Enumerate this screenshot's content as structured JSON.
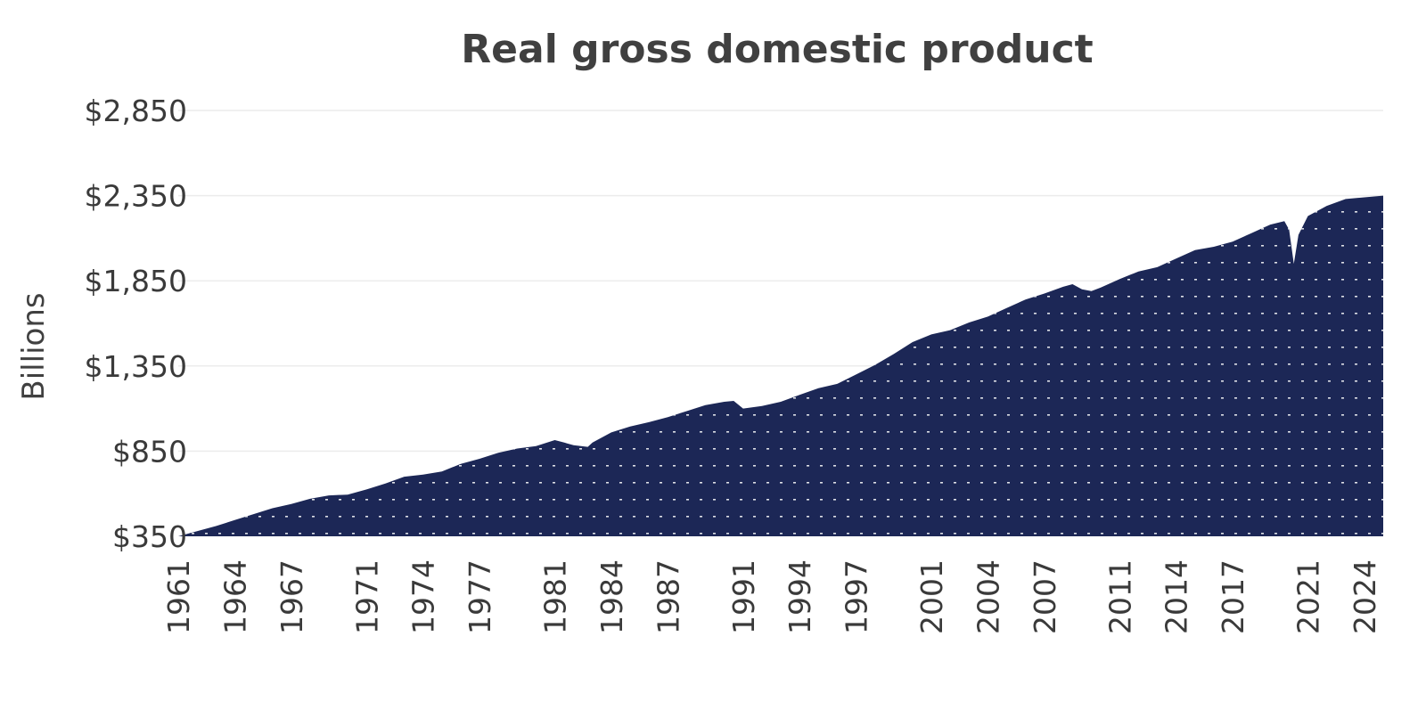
{
  "chart_data": {
    "type": "area",
    "title": "Real gross domestic product",
    "xlabel": "",
    "ylabel": "Billions",
    "x_range": [
      1961,
      2025
    ],
    "ylim": [
      350,
      2850
    ],
    "y_ticks": [
      {
        "value": 350,
        "label": "$350"
      },
      {
        "value": 850,
        "label": "$850"
      },
      {
        "value": 1350,
        "label": "$1,350"
      },
      {
        "value": 1850,
        "label": "$1,850"
      },
      {
        "value": 2350,
        "label": "$2,350"
      },
      {
        "value": 2850,
        "label": "$2,850"
      }
    ],
    "x_ticks": [
      {
        "value": 1961,
        "label": "1961"
      },
      {
        "value": 1964,
        "label": "1964"
      },
      {
        "value": 1967,
        "label": "1967"
      },
      {
        "value": 1971,
        "label": "1971"
      },
      {
        "value": 1974,
        "label": "1974"
      },
      {
        "value": 1977,
        "label": "1977"
      },
      {
        "value": 1981,
        "label": "1981"
      },
      {
        "value": 1984,
        "label": "1984"
      },
      {
        "value": 1987,
        "label": "1987"
      },
      {
        "value": 1991,
        "label": "1991"
      },
      {
        "value": 1994,
        "label": "1994"
      },
      {
        "value": 1997,
        "label": "1997"
      },
      {
        "value": 2001,
        "label": "2001"
      },
      {
        "value": 2004,
        "label": "2004"
      },
      {
        "value": 2007,
        "label": "2007"
      },
      {
        "value": 2011,
        "label": "2011"
      },
      {
        "value": 2014,
        "label": "2014"
      },
      {
        "value": 2017,
        "label": "2017"
      },
      {
        "value": 2021,
        "label": "2021"
      },
      {
        "value": 2024,
        "label": "2024"
      }
    ],
    "grid": true,
    "fill_color": "#1c2756",
    "pattern_dot_color": "#ffffff",
    "series": [
      {
        "x": [
          1961,
          1962,
          1963,
          1964,
          1965,
          1966,
          1967,
          1968,
          1969,
          1970,
          1971,
          1972,
          1973,
          1974,
          1975,
          1976,
          1977,
          1978,
          1979,
          1980,
          1981,
          1981.5,
          1982,
          1982.75,
          1983,
          1984,
          1985,
          1986,
          1987,
          1988,
          1989,
          1990,
          1990.5,
          1991,
          1992,
          1993,
          1994,
          1995,
          1996,
          1997,
          1998,
          1999,
          2000,
          2001,
          2002,
          2003,
          2004,
          2005,
          2006,
          2007,
          2008,
          2008.5,
          2009,
          2009.5,
          2010,
          2011,
          2012,
          2013,
          2014,
          2015,
          2016,
          2017,
          2018,
          2019,
          2019.75,
          2020,
          2020.25,
          2020.5,
          2021,
          2022,
          2023,
          2024,
          2025
        ],
        "y": [
          350,
          380,
          410,
          445,
          480,
          515,
          540,
          570,
          590,
          595,
          625,
          660,
          700,
          712,
          730,
          775,
          805,
          840,
          865,
          880,
          915,
          900,
          885,
          875,
          900,
          960,
          995,
          1020,
          1050,
          1085,
          1120,
          1140,
          1145,
          1100,
          1115,
          1140,
          1180,
          1220,
          1245,
          1300,
          1355,
          1420,
          1490,
          1535,
          1560,
          1605,
          1640,
          1690,
          1740,
          1775,
          1815,
          1830,
          1800,
          1790,
          1810,
          1860,
          1905,
          1930,
          1980,
          2030,
          2050,
          2080,
          2130,
          2180,
          2200,
          2150,
          1950,
          2120,
          2230,
          2290,
          2330,
          2340,
          2350
        ]
      }
    ]
  }
}
